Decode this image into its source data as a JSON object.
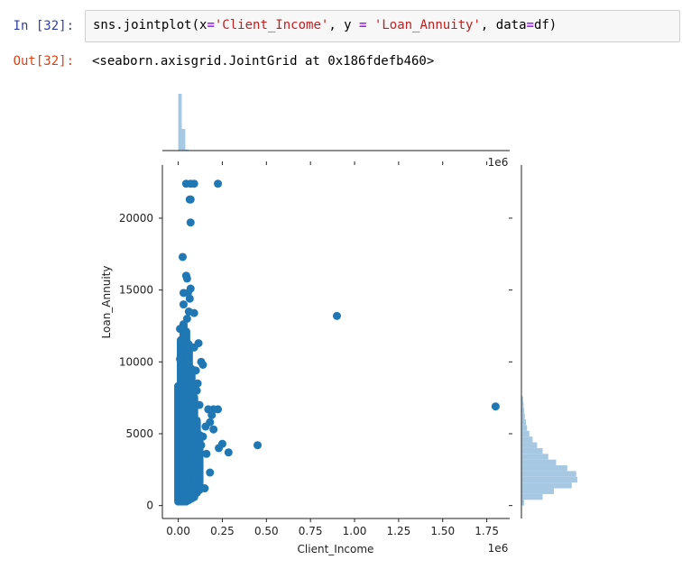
{
  "cell": {
    "in_prompt": "In [32]:",
    "code": {
      "fn": "sns.jointplot(x",
      "eq1": "=",
      "x_str": "'Client_Income'",
      "sep1": ", y ",
      "eq2": "=",
      "sep2": " ",
      "y_str": "'Loan_Annuity'",
      "sep3": ", data",
      "eq3": "=",
      "tail": "df)"
    },
    "out_prompt": "Out[32]:",
    "output": "<seaborn.axisgrid.JointGrid at 0x186fdefb460>"
  },
  "colors": {
    "scatter": "#1f77b4",
    "hist": "#a6c8e3",
    "axis": "#222222"
  },
  "chart_data": {
    "type": "scatter",
    "xlabel": "Client_Income",
    "ylabel": "Loan_Annuity",
    "x_offset_label": "1e6",
    "xlim": [
      -0.09,
      1.88
    ],
    "ylim": [
      -900,
      23700
    ],
    "x_ticks": [
      0.0,
      0.25,
      0.5,
      0.75,
      1.0,
      1.25,
      1.5,
      1.75
    ],
    "x_tick_labels": [
      "0.00",
      "0.25",
      "0.50",
      "0.75",
      "1.00",
      "1.25",
      "1.50",
      "1.75"
    ],
    "y_ticks": [
      0,
      5000,
      10000,
      15000,
      20000
    ],
    "y_tick_labels": [
      "0",
      "5000",
      "10000",
      "15000",
      "20000"
    ],
    "points": [
      [
        0.045,
        22400
      ],
      [
        0.07,
        22400
      ],
      [
        0.09,
        22400
      ],
      [
        0.225,
        22400
      ],
      [
        0.065,
        21300
      ],
      [
        0.07,
        21300
      ],
      [
        0.07,
        19700
      ],
      [
        0.025,
        17300
      ],
      [
        0.045,
        16000
      ],
      [
        0.05,
        15800
      ],
      [
        0.07,
        15100
      ],
      [
        0.055,
        14800
      ],
      [
        0.03,
        14800
      ],
      [
        0.065,
        14400
      ],
      [
        0.03,
        14000
      ],
      [
        0.06,
        13500
      ],
      [
        0.09,
        13400
      ],
      [
        0.05,
        13000
      ],
      [
        0.9,
        13200
      ],
      [
        1.8,
        6900
      ],
      [
        0.45,
        4200
      ],
      [
        0.285,
        3700
      ],
      [
        0.25,
        4300
      ],
      [
        0.23,
        4000
      ],
      [
        0.16,
        3600
      ],
      [
        0.18,
        2300
      ],
      [
        0.15,
        1200
      ],
      [
        0.225,
        6700
      ],
      [
        0.2,
        6700
      ],
      [
        0.17,
        6700
      ],
      [
        0.19,
        6300
      ],
      [
        0.13,
        10000
      ],
      [
        0.14,
        9800
      ],
      [
        0.09,
        11000
      ],
      [
        0.115,
        11300
      ],
      [
        0.1,
        9400
      ],
      [
        0.11,
        8500
      ],
      [
        0.01,
        12300
      ],
      [
        0.02,
        11200
      ],
      [
        0.01,
        10200
      ],
      [
        0.105,
        8000
      ],
      [
        0.12,
        7000
      ],
      [
        0.18,
        5800
      ],
      [
        0.155,
        5500
      ],
      [
        0.14,
        4800
      ],
      [
        0.2,
        5300
      ],
      [
        0.13,
        4200
      ],
      [
        0.11,
        3300
      ],
      [
        0.085,
        2800
      ],
      [
        0.095,
        1900
      ],
      [
        0.075,
        800
      ],
      [
        0.06,
        400
      ]
    ],
    "dense_columns": [
      {
        "x": 0.0,
        "ymin": 0,
        "ymax": 8600
      },
      {
        "x": 0.015,
        "ymin": 0,
        "ymax": 11800
      },
      {
        "x": 0.03,
        "ymin": 0,
        "ymax": 12900
      },
      {
        "x": 0.045,
        "ymin": 0,
        "ymax": 12400
      },
      {
        "x": 0.06,
        "ymin": 100,
        "ymax": 11500
      },
      {
        "x": 0.075,
        "ymin": 200,
        "ymax": 9800
      },
      {
        "x": 0.09,
        "ymin": 300,
        "ymax": 7800
      },
      {
        "x": 0.105,
        "ymin": 600,
        "ymax": 6200
      },
      {
        "x": 0.12,
        "ymin": 800,
        "ymax": 5200
      }
    ],
    "x_marginal": {
      "bin_edges": [
        0.0,
        0.02,
        0.04,
        0.06
      ],
      "heights": [
        1.0,
        0.38,
        0.02
      ]
    },
    "y_marginal": {
      "bin_edges": [
        0,
        400,
        800,
        1200,
        1600,
        2000,
        2400,
        2800,
        3200,
        3600,
        4000,
        4400,
        4800,
        5200,
        5600,
        6000,
        6400,
        6800,
        7200,
        7600
      ],
      "counts": [
        0.05,
        0.38,
        0.58,
        0.9,
        1.0,
        0.98,
        0.82,
        0.62,
        0.48,
        0.38,
        0.28,
        0.2,
        0.14,
        0.1,
        0.08,
        0.06,
        0.05,
        0.04,
        0.03
      ]
    }
  }
}
